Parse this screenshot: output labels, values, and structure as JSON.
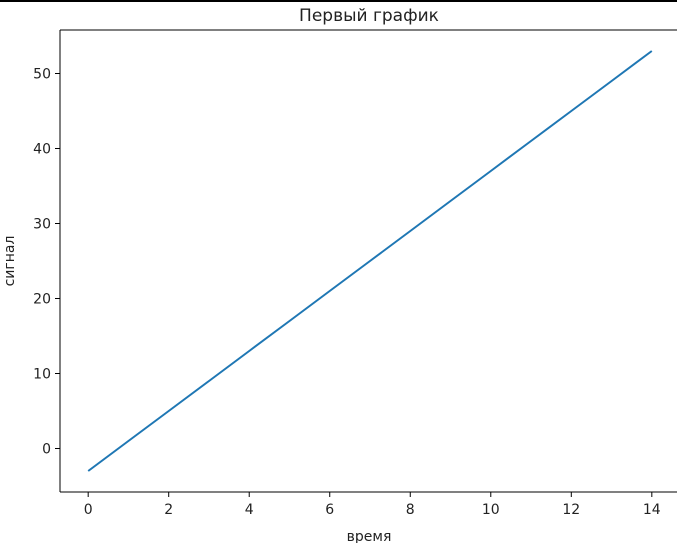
{
  "chart_data": {
    "type": "line",
    "title": "Первый график",
    "xlabel": "время",
    "ylabel": "сигнал",
    "x": [
      0,
      1,
      2,
      3,
      4,
      5,
      6,
      7,
      8,
      9,
      10,
      11,
      12,
      13,
      14
    ],
    "series": [
      {
        "values": [
          -3,
          1,
          5,
          9,
          13,
          17,
          21,
          25,
          29,
          33,
          37,
          41,
          45,
          49,
          53
        ],
        "color": "#1f77b4"
      }
    ],
    "xlim": [
      -0.7,
      14.7
    ],
    "ylim": [
      -5.8,
      55.8
    ],
    "xticks": [
      "0",
      "2",
      "4",
      "6",
      "8",
      "10",
      "12",
      "14"
    ],
    "yticks": [
      "0",
      "10",
      "20",
      "30",
      "40",
      "50"
    ],
    "grid": false
  }
}
